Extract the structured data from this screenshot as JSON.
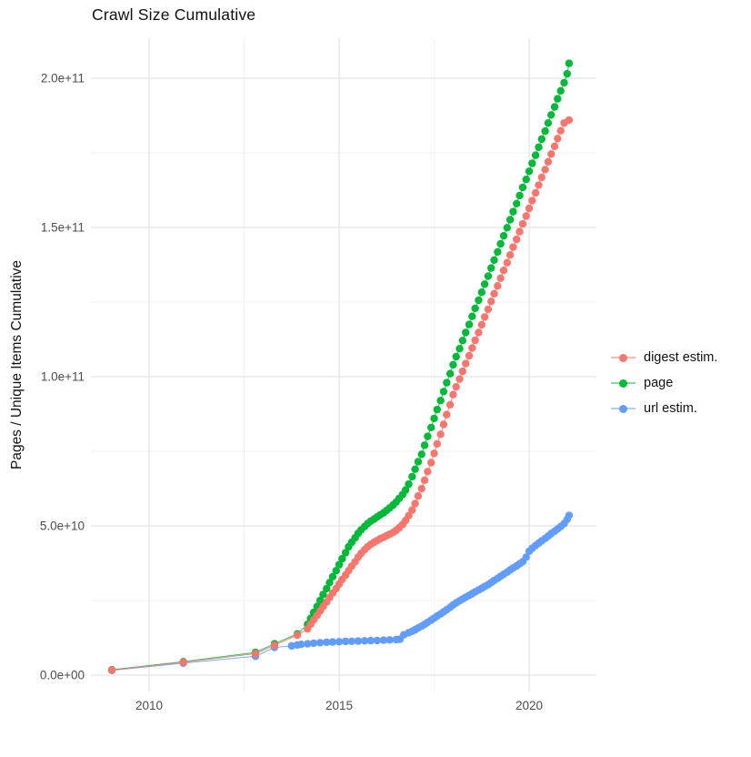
{
  "title": "Crawl Size Cumulative",
  "chart_data": {
    "type": "scatter",
    "title": "Crawl Size Cumulative",
    "xlabel": "",
    "ylabel": "Pages / Unique Items Cumulative",
    "value_unit": "1e9",
    "note": "point values are year (decimal) and cumulative count in billions (1e9)",
    "xlim": [
      2008.5,
      2021.8
    ],
    "ylim_e9": [
      -5,
      213
    ],
    "grid": "major and minor, light gray on white",
    "legend_position": "right",
    "x_ticks": [
      {
        "value": 2010,
        "label": "2010"
      },
      {
        "value": 2015,
        "label": "2015"
      },
      {
        "value": 2020,
        "label": "2020"
      }
    ],
    "x_minor": [
      2012.5,
      2017.5
    ],
    "y_ticks": [
      {
        "value_e9": 0,
        "label": "0.0e+00"
      },
      {
        "value_e9": 50,
        "label": "5.0e+10"
      },
      {
        "value_e9": 100,
        "label": "1.0e+11"
      },
      {
        "value_e9": 150,
        "label": "1.5e+11"
      },
      {
        "value_e9": 200,
        "label": "2.0e+11"
      }
    ],
    "y_minor_e9": [
      25,
      75,
      125,
      175
    ],
    "draw_order": [
      1,
      2,
      0
    ],
    "series": [
      {
        "name": "digest estim.",
        "color": "#F8766D",
        "points": [
          [
            2009.02,
            1.7
          ],
          [
            2010.9,
            4.3
          ],
          [
            2012.8,
            7.2
          ],
          [
            2013.3,
            10
          ],
          [
            2013.9,
            13.4
          ],
          [
            2014.17,
            15.5
          ],
          [
            2014.25,
            17
          ],
          [
            2014.33,
            18.5
          ],
          [
            2014.42,
            20
          ],
          [
            2014.5,
            21.5
          ],
          [
            2014.58,
            23
          ],
          [
            2014.67,
            24.5
          ],
          [
            2014.75,
            26
          ],
          [
            2014.83,
            27.5
          ],
          [
            2014.92,
            29
          ],
          [
            2015.0,
            30.5
          ],
          [
            2015.08,
            32
          ],
          [
            2015.17,
            33.5
          ],
          [
            2015.25,
            35
          ],
          [
            2015.33,
            36.5
          ],
          [
            2015.42,
            38
          ],
          [
            2015.5,
            39.5
          ],
          [
            2015.58,
            40.8
          ],
          [
            2015.67,
            42
          ],
          [
            2015.75,
            43
          ],
          [
            2015.83,
            43.8
          ],
          [
            2015.92,
            44.5
          ],
          [
            2016.0,
            45.1
          ],
          [
            2016.08,
            45.7
          ],
          [
            2016.17,
            46.2
          ],
          [
            2016.25,
            46.7
          ],
          [
            2016.33,
            47.2
          ],
          [
            2016.42,
            47.8
          ],
          [
            2016.5,
            48.5
          ],
          [
            2016.58,
            49.4
          ],
          [
            2016.67,
            50.5
          ],
          [
            2016.75,
            51.8
          ],
          [
            2016.83,
            53.4
          ],
          [
            2016.92,
            55.3
          ],
          [
            2017.0,
            57.5
          ],
          [
            2017.08,
            60
          ],
          [
            2017.17,
            62.5
          ],
          [
            2017.25,
            65.3
          ],
          [
            2017.33,
            68.2
          ],
          [
            2017.42,
            71.2
          ],
          [
            2017.5,
            74.3
          ],
          [
            2017.58,
            77.5
          ],
          [
            2017.67,
            80.7
          ],
          [
            2017.75,
            84
          ],
          [
            2017.83,
            87.3
          ],
          [
            2017.92,
            90.6
          ],
          [
            2018.0,
            94
          ],
          [
            2018.08,
            96.6
          ],
          [
            2018.17,
            99.2
          ],
          [
            2018.25,
            101.8
          ],
          [
            2018.33,
            104.4
          ],
          [
            2018.42,
            107
          ],
          [
            2018.5,
            109.6
          ],
          [
            2018.58,
            112.2
          ],
          [
            2018.67,
            114.8
          ],
          [
            2018.75,
            117.4
          ],
          [
            2018.83,
            120
          ],
          [
            2018.92,
            122.6
          ],
          [
            2019.0,
            125.2
          ],
          [
            2019.08,
            127.8
          ],
          [
            2019.17,
            130.4
          ],
          [
            2019.25,
            133
          ],
          [
            2019.33,
            135.6
          ],
          [
            2019.42,
            138.2
          ],
          [
            2019.5,
            140.8
          ],
          [
            2019.58,
            143.4
          ],
          [
            2019.67,
            146
          ],
          [
            2019.75,
            148.6
          ],
          [
            2019.83,
            151.2
          ],
          [
            2019.92,
            153.8
          ],
          [
            2020.0,
            156.4
          ],
          [
            2020.08,
            159
          ],
          [
            2020.17,
            161.6
          ],
          [
            2020.25,
            164.2
          ],
          [
            2020.33,
            166.8
          ],
          [
            2020.42,
            169.4
          ],
          [
            2020.5,
            172
          ],
          [
            2020.58,
            174.6
          ],
          [
            2020.67,
            177.2
          ],
          [
            2020.75,
            179.8
          ],
          [
            2020.83,
            182.4
          ],
          [
            2020.92,
            185
          ],
          [
            2021.05,
            186
          ]
        ]
      },
      {
        "name": "page",
        "color": "#00BA38",
        "points": [
          [
            2009.02,
            1.8
          ],
          [
            2010.9,
            4.5
          ],
          [
            2012.8,
            7.6
          ],
          [
            2013.3,
            10.5
          ],
          [
            2013.9,
            13.8
          ],
          [
            2014.17,
            17
          ],
          [
            2014.25,
            19
          ],
          [
            2014.33,
            21
          ],
          [
            2014.42,
            23
          ],
          [
            2014.5,
            25
          ],
          [
            2014.58,
            27
          ],
          [
            2014.67,
            29
          ],
          [
            2014.75,
            31
          ],
          [
            2014.83,
            33
          ],
          [
            2014.92,
            35
          ],
          [
            2015.0,
            37
          ],
          [
            2015.08,
            39
          ],
          [
            2015.17,
            41
          ],
          [
            2015.25,
            43
          ],
          [
            2015.33,
            44.5
          ],
          [
            2015.42,
            46
          ],
          [
            2015.5,
            47.5
          ],
          [
            2015.58,
            48.7
          ],
          [
            2015.67,
            49.8
          ],
          [
            2015.75,
            50.8
          ],
          [
            2015.83,
            51.6
          ],
          [
            2015.92,
            52.3
          ],
          [
            2016.0,
            53
          ],
          [
            2016.08,
            53.7
          ],
          [
            2016.17,
            54.4
          ],
          [
            2016.25,
            55.2
          ],
          [
            2016.33,
            56
          ],
          [
            2016.42,
            57
          ],
          [
            2016.5,
            58
          ],
          [
            2016.58,
            59.2
          ],
          [
            2016.67,
            60.5
          ],
          [
            2016.75,
            62
          ],
          [
            2016.83,
            64
          ],
          [
            2016.92,
            66.5
          ],
          [
            2017.0,
            69
          ],
          [
            2017.08,
            71.5
          ],
          [
            2017.17,
            74
          ],
          [
            2017.25,
            77
          ],
          [
            2017.33,
            80
          ],
          [
            2017.42,
            83
          ],
          [
            2017.5,
            86
          ],
          [
            2017.58,
            89
          ],
          [
            2017.67,
            92
          ],
          [
            2017.75,
            95
          ],
          [
            2017.83,
            98
          ],
          [
            2017.92,
            101
          ],
          [
            2018.0,
            104
          ],
          [
            2018.08,
            106.7
          ],
          [
            2018.17,
            109.4
          ],
          [
            2018.25,
            112.1
          ],
          [
            2018.33,
            114.8
          ],
          [
            2018.42,
            117.5
          ],
          [
            2018.5,
            120.2
          ],
          [
            2018.58,
            122.9
          ],
          [
            2018.67,
            125.6
          ],
          [
            2018.75,
            128.3
          ],
          [
            2018.83,
            131
          ],
          [
            2018.92,
            133.7
          ],
          [
            2019.0,
            136.4
          ],
          [
            2019.08,
            139.1
          ],
          [
            2019.17,
            141.8
          ],
          [
            2019.25,
            144.5
          ],
          [
            2019.33,
            147.2
          ],
          [
            2019.42,
            149.9
          ],
          [
            2019.5,
            152.6
          ],
          [
            2019.58,
            155.3
          ],
          [
            2019.67,
            158
          ],
          [
            2019.75,
            160.7
          ],
          [
            2019.83,
            163.4
          ],
          [
            2019.92,
            166.1
          ],
          [
            2020.0,
            168.8
          ],
          [
            2020.08,
            171.5
          ],
          [
            2020.17,
            174.2
          ],
          [
            2020.25,
            176.9
          ],
          [
            2020.33,
            179.6
          ],
          [
            2020.42,
            182.3
          ],
          [
            2020.5,
            185
          ],
          [
            2020.58,
            187.7
          ],
          [
            2020.67,
            190.4
          ],
          [
            2020.75,
            193.1
          ],
          [
            2020.83,
            195.8
          ],
          [
            2020.92,
            198.5
          ],
          [
            2021.0,
            201.5
          ],
          [
            2021.05,
            205
          ]
        ]
      },
      {
        "name": "url estim.",
        "color": "#619CFF",
        "points": [
          [
            2009.02,
            1.6
          ],
          [
            2010.9,
            4.0
          ],
          [
            2012.8,
            6.3
          ],
          [
            2013.3,
            9.3
          ],
          [
            2013.75,
            9.8
          ],
          [
            2013.9,
            10.1
          ],
          [
            2014.0,
            10.3
          ],
          [
            2014.17,
            10.5
          ],
          [
            2014.33,
            10.7
          ],
          [
            2014.5,
            10.85
          ],
          [
            2014.67,
            11.0
          ],
          [
            2014.83,
            11.1
          ],
          [
            2015.0,
            11.2
          ],
          [
            2015.17,
            11.3
          ],
          [
            2015.33,
            11.35
          ],
          [
            2015.5,
            11.4
          ],
          [
            2015.67,
            11.5
          ],
          [
            2015.83,
            11.55
          ],
          [
            2016.0,
            11.6
          ],
          [
            2016.17,
            11.7
          ],
          [
            2016.33,
            11.8
          ],
          [
            2016.5,
            11.9
          ],
          [
            2016.6,
            12.0
          ],
          [
            2016.7,
            13.5
          ],
          [
            2016.83,
            14.2
          ],
          [
            2016.92,
            14.7
          ],
          [
            2017.0,
            15.2
          ],
          [
            2017.08,
            15.8
          ],
          [
            2017.17,
            16.4
          ],
          [
            2017.25,
            17
          ],
          [
            2017.33,
            17.7
          ],
          [
            2017.42,
            18.4
          ],
          [
            2017.5,
            19.1
          ],
          [
            2017.58,
            19.8
          ],
          [
            2017.67,
            20.5
          ],
          [
            2017.75,
            21.2
          ],
          [
            2017.83,
            21.9
          ],
          [
            2017.92,
            22.7
          ],
          [
            2018.0,
            23.5
          ],
          [
            2018.08,
            24.2
          ],
          [
            2018.17,
            24.9
          ],
          [
            2018.25,
            25.5
          ],
          [
            2018.33,
            26.1
          ],
          [
            2018.42,
            26.7
          ],
          [
            2018.5,
            27.3
          ],
          [
            2018.58,
            27.9
          ],
          [
            2018.67,
            28.5
          ],
          [
            2018.75,
            29.1
          ],
          [
            2018.83,
            29.7
          ],
          [
            2018.92,
            30.3
          ],
          [
            2019.0,
            31
          ],
          [
            2019.08,
            31.7
          ],
          [
            2019.17,
            32.4
          ],
          [
            2019.25,
            33.1
          ],
          [
            2019.33,
            33.8
          ],
          [
            2019.42,
            34.5
          ],
          [
            2019.5,
            35.2
          ],
          [
            2019.58,
            35.9
          ],
          [
            2019.67,
            36.6
          ],
          [
            2019.75,
            37.3
          ],
          [
            2019.83,
            38
          ],
          [
            2019.92,
            39.5
          ],
          [
            2020.0,
            41.5
          ],
          [
            2020.08,
            42.5
          ],
          [
            2020.17,
            43.4
          ],
          [
            2020.25,
            44.2
          ],
          [
            2020.33,
            45
          ],
          [
            2020.42,
            45.8
          ],
          [
            2020.5,
            46.6
          ],
          [
            2020.58,
            47.4
          ],
          [
            2020.67,
            48.2
          ],
          [
            2020.75,
            49
          ],
          [
            2020.83,
            49.8
          ],
          [
            2020.92,
            50.8
          ],
          [
            2021.0,
            52.2
          ],
          [
            2021.05,
            53.5
          ]
        ]
      }
    ]
  }
}
